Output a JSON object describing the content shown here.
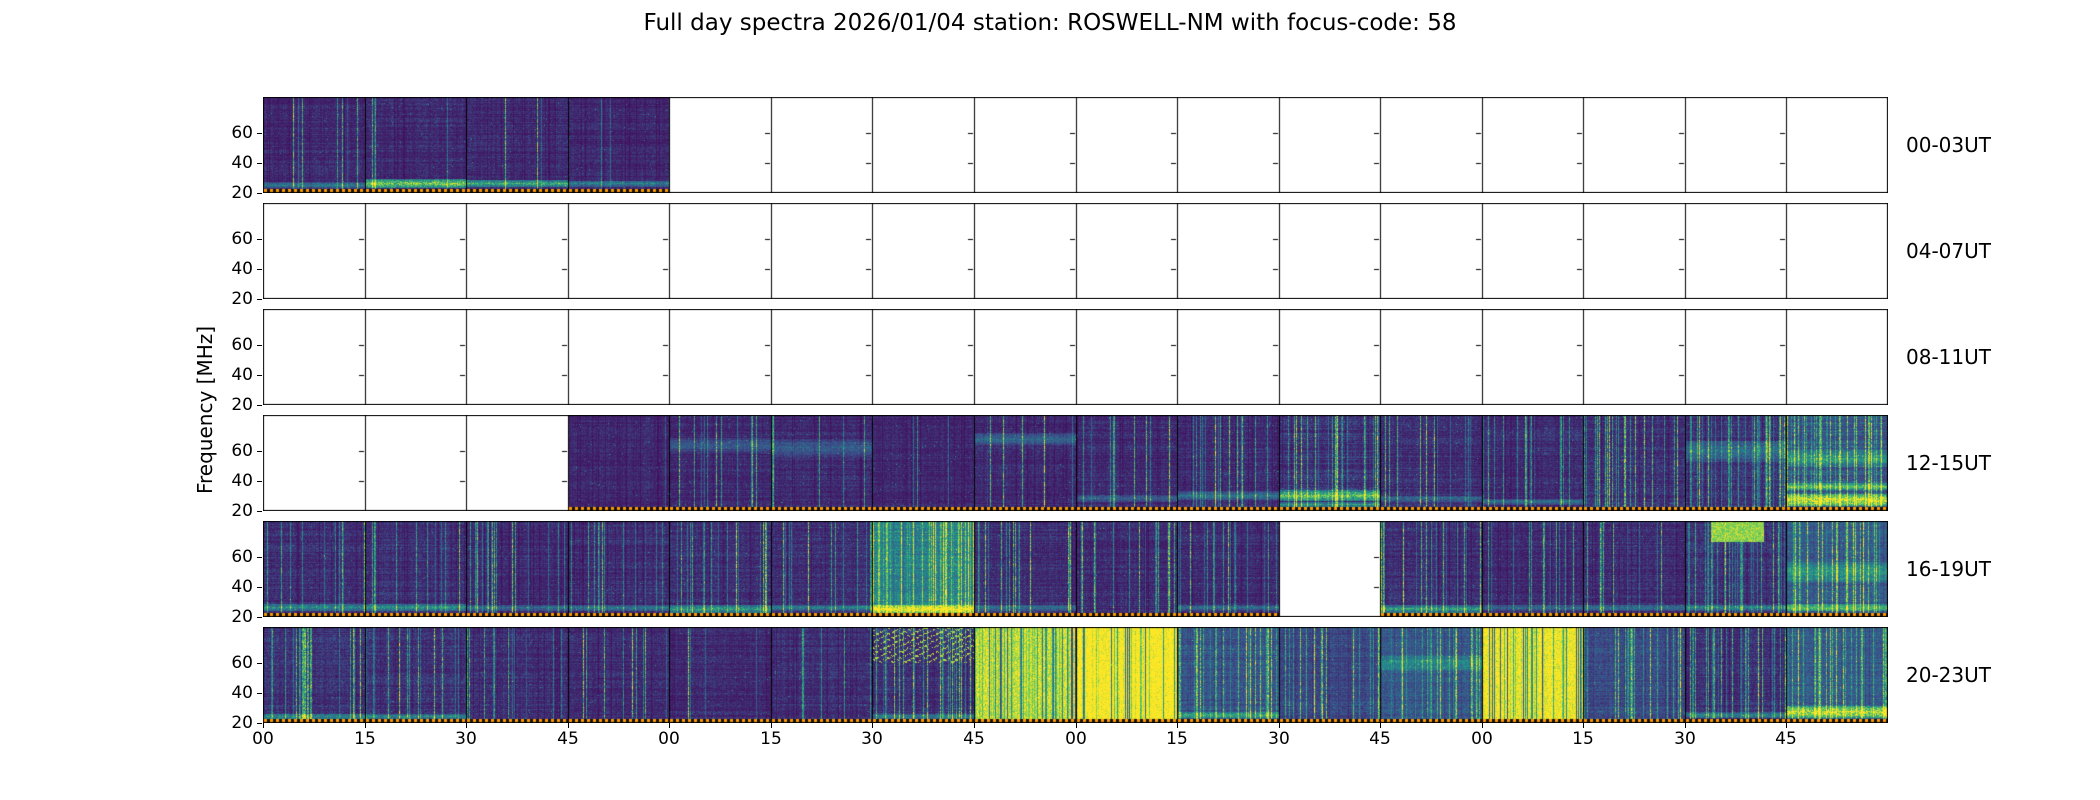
{
  "figure": {
    "title": "Full day spectra 2026/01/04 station: ROSWELL-NM with focus-code: 58",
    "ylabel": "Frequency [MHz]"
  },
  "chart_data": {
    "type": "heatmap",
    "subtype": "radio-spectrogram-daygrid",
    "station": "ROSWELL-NM",
    "date": "2026/01/04",
    "focus_code": "58",
    "colormap": "viridis",
    "blank_color": "#ffffff",
    "palette": {
      "viridis_stops": [
        "#440154",
        "#3b528b",
        "#21918c",
        "#5ec962",
        "#fde725"
      ],
      "dotted_line_color": "#ff9800",
      "frame_color": "#000000"
    },
    "freq_axis": {
      "label": "Frequency [MHz]",
      "ticks": [
        20,
        40,
        60
      ],
      "min": 20,
      "max": 84
    },
    "time_axis": {
      "hours_per_row": 4,
      "segments_per_row": 16,
      "segment_minutes": 15,
      "tick_labels": [
        "00",
        "15",
        "30",
        "45",
        "00",
        "15",
        "30",
        "45",
        "00",
        "15",
        "30",
        "45",
        "00",
        "15",
        "30",
        "45"
      ]
    },
    "rows": [
      {
        "label": "00-03UT",
        "segments": [
          {
            "on": 1,
            "lv": 0.13,
            "vs": 0.15,
            "hs": 0.5,
            "bands": [
              [
                25,
                0.4,
                4
              ]
            ]
          },
          {
            "on": 1,
            "lv": 0.13,
            "vs": 0.15,
            "hs": 0.5,
            "bands": [
              [
                26,
                0.95,
                6
              ]
            ]
          },
          {
            "on": 1,
            "lv": 0.13,
            "vs": 0.2,
            "hs": 0.5,
            "bands": [
              [
                26,
                0.7,
                5
              ]
            ]
          },
          {
            "on": 1,
            "lv": 0.12,
            "vs": 0.15,
            "hs": 0.5,
            "bands": [
              [
                26,
                0.45,
                4
              ]
            ]
          },
          {
            "on": 0
          },
          {
            "on": 0
          },
          {
            "on": 0
          },
          {
            "on": 0
          },
          {
            "on": 0
          },
          {
            "on": 0
          },
          {
            "on": 0
          },
          {
            "on": 0
          },
          {
            "on": 0
          },
          {
            "on": 0
          },
          {
            "on": 0
          },
          {
            "on": 0
          }
        ]
      },
      {
        "label": "04-07UT",
        "segments": [
          {
            "on": 0
          },
          {
            "on": 0
          },
          {
            "on": 0
          },
          {
            "on": 0
          },
          {
            "on": 0
          },
          {
            "on": 0
          },
          {
            "on": 0
          },
          {
            "on": 0
          },
          {
            "on": 0
          },
          {
            "on": 0
          },
          {
            "on": 0
          },
          {
            "on": 0
          },
          {
            "on": 0
          },
          {
            "on": 0
          },
          {
            "on": 0
          },
          {
            "on": 0
          }
        ]
      },
      {
        "label": "08-11UT",
        "segments": [
          {
            "on": 0
          },
          {
            "on": 0
          },
          {
            "on": 0
          },
          {
            "on": 0
          },
          {
            "on": 0
          },
          {
            "on": 0
          },
          {
            "on": 0
          },
          {
            "on": 0
          },
          {
            "on": 0
          },
          {
            "on": 0
          },
          {
            "on": 0
          },
          {
            "on": 0
          },
          {
            "on": 0
          },
          {
            "on": 0
          },
          {
            "on": 0
          },
          {
            "on": 0
          }
        ]
      },
      {
        "label": "12-15UT",
        "segments": [
          {
            "on": 0
          },
          {
            "on": 0
          },
          {
            "on": 0
          },
          {
            "on": 1,
            "lv": 0.12,
            "vs": 0.2,
            "hs": 0.4
          },
          {
            "on": 1,
            "lv": 0.13,
            "vs": 0.25,
            "hs": 0.5,
            "bands": [
              [
                64,
                0.2,
                10
              ]
            ]
          },
          {
            "on": 1,
            "lv": 0.13,
            "vs": 0.3,
            "hs": 0.5,
            "bands": [
              [
                62,
                0.25,
                12
              ]
            ]
          },
          {
            "on": 1,
            "lv": 0.12,
            "vs": 0.25,
            "hs": 0.4
          },
          {
            "on": 1,
            "lv": 0.13,
            "vs": 0.3,
            "hs": 0.5,
            "bands": [
              [
                68,
                0.3,
                8
              ]
            ]
          },
          {
            "on": 1,
            "lv": 0.13,
            "vs": 0.3,
            "hs": 0.5,
            "bands": [
              [
                28,
                0.25,
                5
              ]
            ]
          },
          {
            "on": 1,
            "lv": 0.14,
            "vs": 0.35,
            "hs": 0.5,
            "bands": [
              [
                30,
                0.35,
                6
              ]
            ]
          },
          {
            "on": 1,
            "lv": 0.16,
            "vs": 0.6,
            "hs": 0.6,
            "bands": [
              [
                30,
                0.8,
                7
              ],
              [
                24,
                0.5,
                4
              ]
            ]
          },
          {
            "on": 1,
            "lv": 0.14,
            "vs": 0.45,
            "hs": 0.5,
            "bands": [
              [
                28,
                0.3,
                4
              ]
            ]
          },
          {
            "on": 1,
            "lv": 0.14,
            "vs": 0.5,
            "hs": 0.5,
            "bands": [
              [
                26,
                0.35,
                4
              ]
            ]
          },
          {
            "on": 1,
            "lv": 0.15,
            "vs": 0.55,
            "hs": 0.5
          },
          {
            "on": 1,
            "lv": 0.16,
            "vs": 0.65,
            "hs": 0.5,
            "bands": [
              [
                60,
                0.3,
                14
              ]
            ]
          },
          {
            "on": 1,
            "lv": 0.18,
            "vs": 0.8,
            "hs": 0.6,
            "wash": 0.1,
            "bands": [
              [
                27,
                0.95,
                8
              ],
              [
                36,
                0.6,
                5
              ],
              [
                55,
                0.35,
                12
              ]
            ]
          }
        ]
      },
      {
        "label": "16-19UT",
        "segments": [
          {
            "on": 1,
            "lv": 0.14,
            "vs": 0.45,
            "hs": 0.5,
            "bands": [
              [
                26,
                0.5,
                5
              ]
            ]
          },
          {
            "on": 1,
            "lv": 0.14,
            "vs": 0.4,
            "hs": 0.5,
            "bands": [
              [
                26,
                0.55,
                5
              ]
            ]
          },
          {
            "on": 1,
            "lv": 0.13,
            "vs": 0.35,
            "hs": 0.5,
            "bands": [
              [
                26,
                0.35,
                4
              ]
            ]
          },
          {
            "on": 1,
            "lv": 0.14,
            "vs": 0.45,
            "hs": 0.5,
            "bands": [
              [
                26,
                0.4,
                4
              ]
            ]
          },
          {
            "on": 1,
            "lv": 0.14,
            "vs": 0.4,
            "hs": 0.5,
            "bands": [
              [
                25,
                0.6,
                5
              ]
            ]
          },
          {
            "on": 1,
            "lv": 0.14,
            "vs": 0.45,
            "hs": 0.5,
            "bands": [
              [
                26,
                0.4,
                4
              ]
            ]
          },
          {
            "on": 1,
            "lv": 0.2,
            "vs": 0.85,
            "hs": 0.5,
            "wash": 0.3,
            "bands": [
              [
                25,
                0.9,
                6
              ]
            ]
          },
          {
            "on": 1,
            "lv": 0.14,
            "vs": 0.5,
            "hs": 0.5,
            "bands": [
              [
                26,
                0.35,
                4
              ]
            ]
          },
          {
            "on": 1,
            "lv": 0.13,
            "vs": 0.45,
            "hs": 0.5
          },
          {
            "on": 1,
            "lv": 0.13,
            "vs": 0.35,
            "hs": 0.5,
            "bands": [
              [
                26,
                0.3,
                4
              ]
            ]
          },
          {
            "on": 0
          },
          {
            "on": 1,
            "lv": 0.14,
            "vs": 0.4,
            "hs": 0.5,
            "bands": [
              [
                25,
                0.6,
                5
              ]
            ]
          },
          {
            "on": 1,
            "lv": 0.13,
            "vs": 0.35,
            "hs": 0.5,
            "bands": [
              [
                26,
                0.3,
                4
              ]
            ]
          },
          {
            "on": 1,
            "lv": 0.14,
            "vs": 0.45,
            "hs": 0.5,
            "bands": [
              [
                26,
                0.35,
                4
              ]
            ]
          },
          {
            "on": 1,
            "lv": 0.15,
            "vs": 0.6,
            "hs": 0.5,
            "top": 0.95,
            "bands": [
              [
                26,
                0.4,
                4
              ]
            ]
          },
          {
            "on": 1,
            "lv": 0.18,
            "vs": 0.85,
            "hs": 0.5,
            "wash": 0.15,
            "bands": [
              [
                26,
                0.6,
                5
              ],
              [
                50,
                0.35,
                14
              ]
            ]
          }
        ]
      },
      {
        "label": "20-23UT",
        "segments": [
          {
            "on": 1,
            "lv": 0.15,
            "vs": 0.55,
            "hs": 0.5,
            "bands": [
              [
                24,
                0.5,
                4
              ]
            ]
          },
          {
            "on": 1,
            "lv": 0.15,
            "vs": 0.5,
            "hs": 0.5,
            "bands": [
              [
                24,
                0.45,
                4
              ]
            ]
          },
          {
            "on": 1,
            "lv": 0.14,
            "vs": 0.4,
            "hs": 0.5
          },
          {
            "on": 1,
            "lv": 0.13,
            "vs": 0.35,
            "hs": 0.5
          },
          {
            "on": 1,
            "lv": 0.13,
            "vs": 0.3,
            "hs": 0.5
          },
          {
            "on": 1,
            "lv": 0.14,
            "vs": 0.45,
            "hs": 0.5
          },
          {
            "on": 1,
            "lv": 0.15,
            "vs": 0.75,
            "hs": 0.5,
            "dots": 0.8,
            "bands": [
              [
                24,
                0.4,
                4
              ]
            ]
          },
          {
            "on": 1,
            "lv": 0.3,
            "vs": 0.9,
            "sat": 0.7
          },
          {
            "on": 1,
            "lv": 0.3,
            "vs": 0.5,
            "sat": 0.85
          },
          {
            "on": 1,
            "lv": 0.16,
            "vs": 0.6,
            "hs": 0.5,
            "wash": 0.12,
            "bands": [
              [
                25,
                0.5,
                4
              ]
            ]
          },
          {
            "on": 1,
            "lv": 0.15,
            "vs": 0.55,
            "hs": 0.5,
            "wash": 0.1
          },
          {
            "on": 1,
            "lv": 0.16,
            "vs": 0.7,
            "hs": 0.5,
            "wash": 0.15,
            "bands": [
              [
                60,
                0.3,
                10
              ]
            ]
          },
          {
            "on": 1,
            "lv": 0.3,
            "vs": 0.8,
            "sat": 0.8
          },
          {
            "on": 1,
            "lv": 0.15,
            "vs": 0.55,
            "hs": 0.5,
            "wash": 0.1
          },
          {
            "on": 1,
            "lv": 0.15,
            "vs": 0.6,
            "hs": 0.5,
            "bands": [
              [
                25,
                0.45,
                4
              ]
            ]
          },
          {
            "on": 1,
            "lv": 0.17,
            "vs": 0.75,
            "hs": 0.5,
            "wash": 0.15,
            "bands": [
              [
                27,
                0.9,
                8
              ]
            ]
          }
        ]
      }
    ]
  }
}
